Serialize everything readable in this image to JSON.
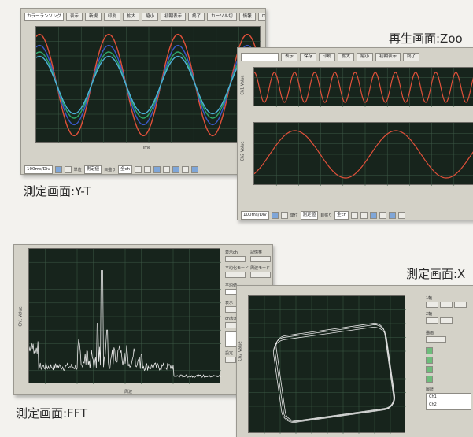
{
  "captions": {
    "yt": "測定画面:Y-T",
    "zoom": "再生画面:Zoo",
    "fft": "測定画面:FFT",
    "xy": "測定画面:X"
  },
  "yt_window": {
    "toolbar": [
      "カラーランソング",
      "表示",
      "新規",
      "印刷",
      "拡大",
      "縮小",
      "初期表示",
      "終了",
      "カーソル切",
      "情報",
      "ログ",
      "終了"
    ],
    "x_axis_title": "Time",
    "bottom_bar": [
      "100ms/Div",
      "単位",
      "測定値",
      "目盛り",
      "全ch"
    ]
  },
  "zoom_window": {
    "toolbar": [
      "表示",
      "保存",
      "印刷",
      "拡大",
      "縮小",
      "初期表示",
      "終了"
    ],
    "ylabel_top": "Ch1 Value",
    "ylabel_bottom": "Ch2 Value",
    "bottom_bar": [
      "100ms/Div",
      "単位",
      "測定値",
      "目盛り",
      "全ch"
    ]
  },
  "fft_window": {
    "ylabel": "Ch1 Value",
    "xlabel": "周波",
    "side_labels": [
      "表示ch",
      "記憶帯",
      "平均化モード",
      "周波モード",
      "平均値",
      "表示",
      "ch表示",
      "設定"
    ]
  },
  "xy_window": {
    "ylabel": "Ch2 Value",
    "side_labels": [
      "1軸",
      "2軸",
      "描画",
      "履歴",
      "Ch1",
      "Ch2"
    ]
  },
  "chart_data": [
    {
      "type": "line",
      "title": "",
      "series": [
        {
          "color": "#e0503a",
          "amplitude": 0.92
        },
        {
          "color": "#3a58c8",
          "amplitude": 0.72
        },
        {
          "color": "#2fa66a",
          "amplitude": 0.6
        },
        {
          "color": "#4cb0d8",
          "amplitude": 0.52
        }
      ],
      "cycles": 3.25,
      "grid": true
    },
    {
      "type": "line",
      "series": [
        {
          "color": "#e0503a"
        }
      ],
      "cycles_top": 11,
      "cycles_bottom": 2.2,
      "grid": true
    },
    {
      "type": "line",
      "series": [
        {
          "color": "#e8e8e8"
        }
      ],
      "peak_position": 0.38,
      "peak_value": 0.84,
      "grid": true
    },
    {
      "type": "scatter",
      "series": [
        {
          "color": "#e8e8e8"
        }
      ],
      "shape": "rounded-square-loop",
      "grid": true
    }
  ]
}
